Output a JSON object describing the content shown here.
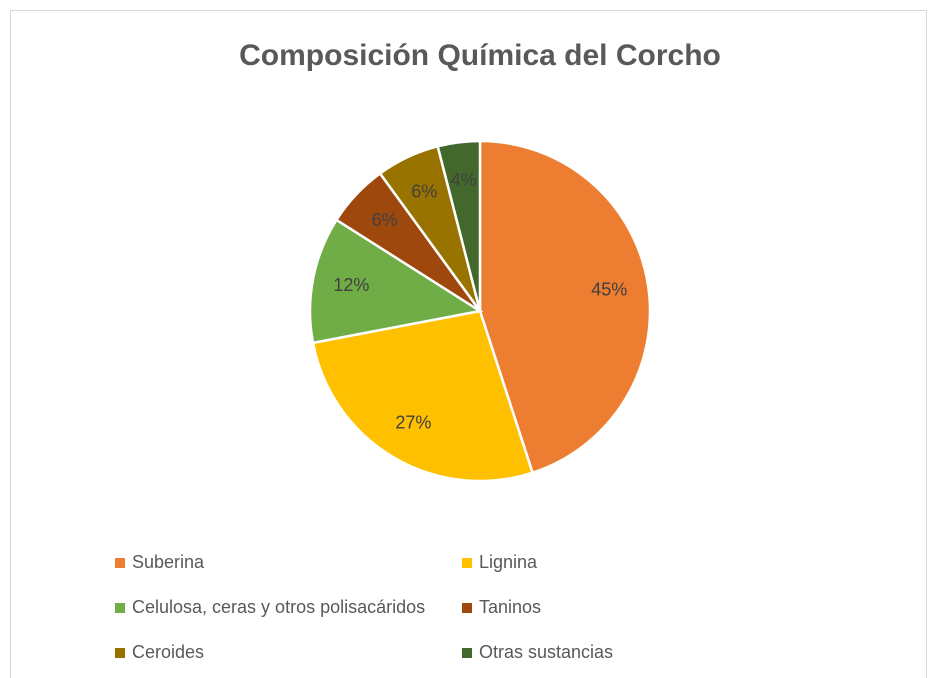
{
  "chart_data": {
    "type": "pie",
    "title": "Composición Química del Corcho",
    "categories": [
      "Suberina",
      "Lignina",
      "Celulosa, ceras y otros polisacáridos",
      "Taninos",
      "Ceroides",
      "Otras sustancias"
    ],
    "values": [
      45,
      27,
      12,
      6,
      6,
      4
    ],
    "value_labels": [
      "45%",
      "27%",
      "12%",
      "6%",
      "6%",
      "4%"
    ],
    "colors": [
      "#ed7d31",
      "#ffc000",
      "#70ad47",
      "#9e480e",
      "#997300",
      "#43682b"
    ],
    "legend": "bottom"
  }
}
